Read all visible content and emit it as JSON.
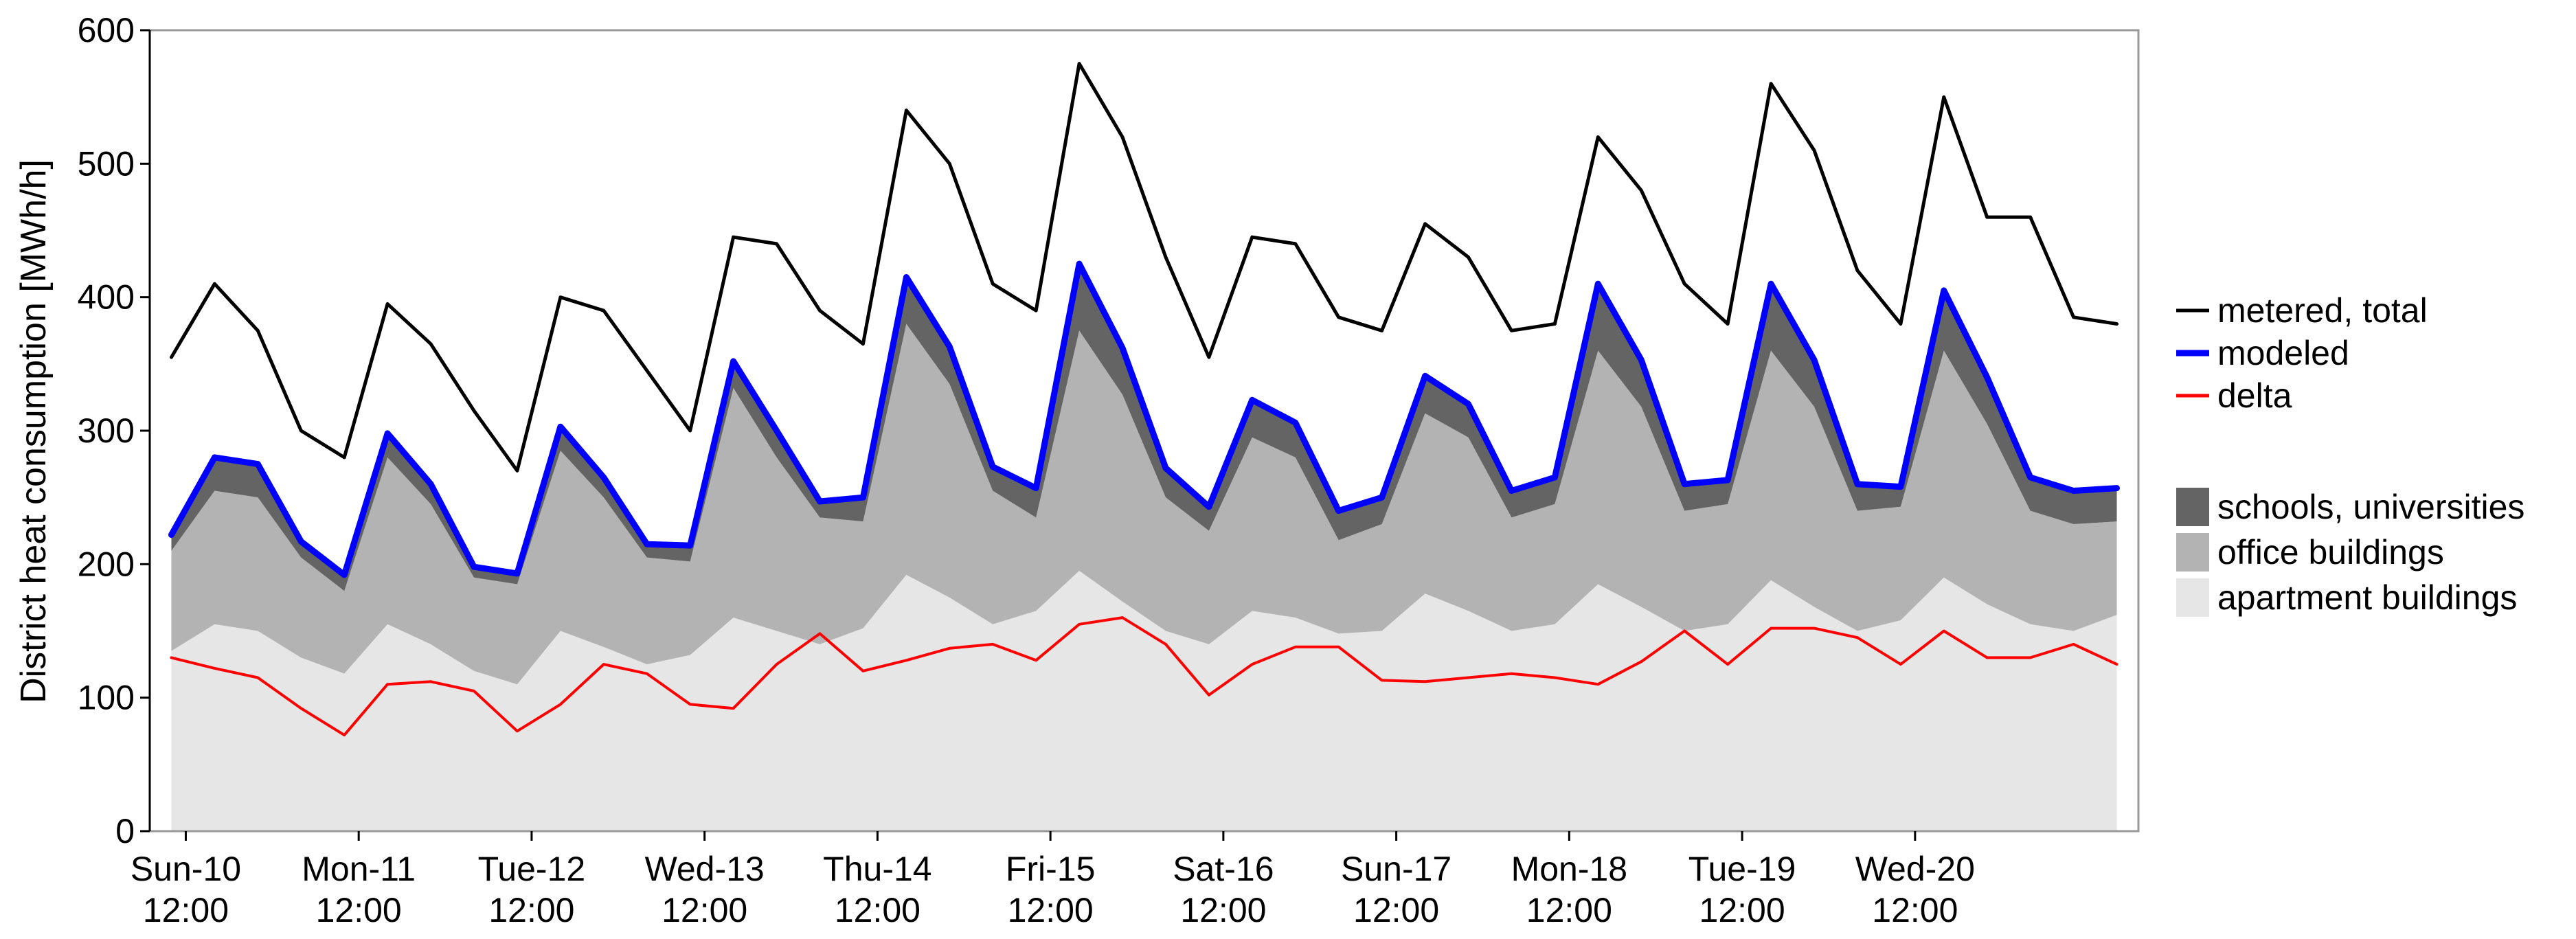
{
  "chart_data": {
    "type": "area",
    "title": "",
    "xlabel": "",
    "ylabel": "District heat consumption [MWh/h]",
    "ylim": [
      0,
      600
    ],
    "yticks": [
      0,
      100,
      200,
      300,
      400,
      500,
      600
    ],
    "x_unit": "hours from Sun-10 00:00",
    "xlim": [
      7,
      283
    ],
    "x_ticks": [
      {
        "x": 12,
        "day": "Sun-10",
        "time": "12:00"
      },
      {
        "x": 36,
        "day": "Mon-11",
        "time": "12:00"
      },
      {
        "x": 60,
        "day": "Tue-12",
        "time": "12:00"
      },
      {
        "x": 84,
        "day": "Wed-13",
        "time": "12:00"
      },
      {
        "x": 108,
        "day": "Thu-14",
        "time": "12:00"
      },
      {
        "x": 132,
        "day": "Fri-15",
        "time": "12:00"
      },
      {
        "x": 156,
        "day": "Sat-16",
        "time": "12:00"
      },
      {
        "x": 180,
        "day": "Sun-17",
        "time": "12:00"
      },
      {
        "x": 204,
        "day": "Mon-18",
        "time": "12:00"
      },
      {
        "x": 228,
        "day": "Tue-19",
        "time": "12:00"
      },
      {
        "x": 252,
        "day": "Wed-20",
        "time": "12:00"
      }
    ],
    "x": [
      10,
      16,
      22,
      28,
      34,
      40,
      46,
      52,
      58,
      64,
      70,
      76,
      82,
      88,
      94,
      100,
      106,
      112,
      118,
      124,
      130,
      136,
      142,
      148,
      154,
      160,
      166,
      172,
      178,
      184,
      190,
      196,
      202,
      208,
      214,
      220,
      226,
      232,
      238,
      244,
      250,
      256,
      262,
      268,
      274,
      280
    ],
    "stacked_series": [
      {
        "name": "apartment buildings",
        "color": "#e6e6e6",
        "values": [
          135,
          155,
          150,
          130,
          118,
          155,
          140,
          120,
          110,
          150,
          138,
          125,
          132,
          160,
          150,
          140,
          152,
          192,
          175,
          155,
          165,
          195,
          172,
          150,
          140,
          165,
          160,
          148,
          150,
          178,
          165,
          150,
          155,
          185,
          168,
          150,
          155,
          188,
          168,
          150,
          158,
          190,
          170,
          155,
          150,
          162
        ]
      },
      {
        "name": "office buildings",
        "color": "#b3b3b3",
        "values": [
          75,
          100,
          100,
          75,
          62,
          125,
          105,
          70,
          75,
          135,
          112,
          80,
          70,
          172,
          130,
          95,
          80,
          188,
          160,
          100,
          70,
          180,
          155,
          100,
          85,
          130,
          120,
          70,
          80,
          135,
          130,
          85,
          90,
          175,
          150,
          90,
          90,
          172,
          150,
          90,
          85,
          170,
          135,
          85,
          80,
          70
        ]
      },
      {
        "name": "schools, universities",
        "color": "#646464",
        "values": [
          12,
          25,
          25,
          12,
          12,
          18,
          15,
          8,
          8,
          18,
          15,
          10,
          12,
          20,
          20,
          12,
          18,
          35,
          28,
          18,
          22,
          50,
          35,
          22,
          18,
          28,
          26,
          22,
          20,
          28,
          25,
          20,
          20,
          50,
          35,
          20,
          18,
          50,
          35,
          20,
          15,
          45,
          35,
          25,
          25,
          25
        ]
      }
    ],
    "series": [
      {
        "name": "modeled",
        "color": "#0000ff",
        "values": [
          222,
          280,
          275,
          217,
          192,
          298,
          260,
          198,
          193,
          303,
          265,
          215,
          214,
          352,
          300,
          247,
          250,
          415,
          363,
          273,
          257,
          425,
          362,
          272,
          243,
          323,
          306,
          240,
          250,
          341,
          320,
          255,
          265,
          410,
          353,
          260,
          263,
          410,
          353,
          260,
          258,
          405,
          340,
          265,
          255,
          257
        ]
      },
      {
        "name": "metered, total",
        "color": "#000000",
        "values": [
          355,
          410,
          375,
          300,
          280,
          395,
          365,
          315,
          270,
          400,
          390,
          345,
          300,
          445,
          440,
          390,
          365,
          540,
          500,
          410,
          390,
          575,
          520,
          430,
          355,
          445,
          440,
          385,
          375,
          455,
          430,
          375,
          380,
          520,
          480,
          410,
          380,
          560,
          510,
          420,
          380,
          550,
          460,
          460,
          385,
          380
        ]
      },
      {
        "name": "delta",
        "color": "#ff0000",
        "values": [
          130,
          122,
          115,
          92,
          72,
          110,
          112,
          105,
          75,
          95,
          125,
          118,
          95,
          92,
          125,
          148,
          120,
          128,
          137,
          140,
          128,
          155,
          160,
          140,
          102,
          125,
          138,
          138,
          113,
          112,
          115,
          118,
          115,
          110,
          127,
          150,
          125,
          152,
          152,
          145,
          125,
          150,
          130,
          130,
          140,
          125
        ]
      }
    ],
    "legend": {
      "position": "right",
      "lines": [
        {
          "label": "metered, total",
          "color": "#000000"
        },
        {
          "label": "modeled",
          "color": "#0000ff"
        },
        {
          "label": "delta",
          "color": "#ff0000"
        }
      ],
      "areas": [
        {
          "label": "schools, universities",
          "color": "#646464"
        },
        {
          "label": "office buildings",
          "color": "#b3b3b3"
        },
        {
          "label": "apartment buildings",
          "color": "#e6e6e6"
        }
      ]
    },
    "grid": false
  }
}
